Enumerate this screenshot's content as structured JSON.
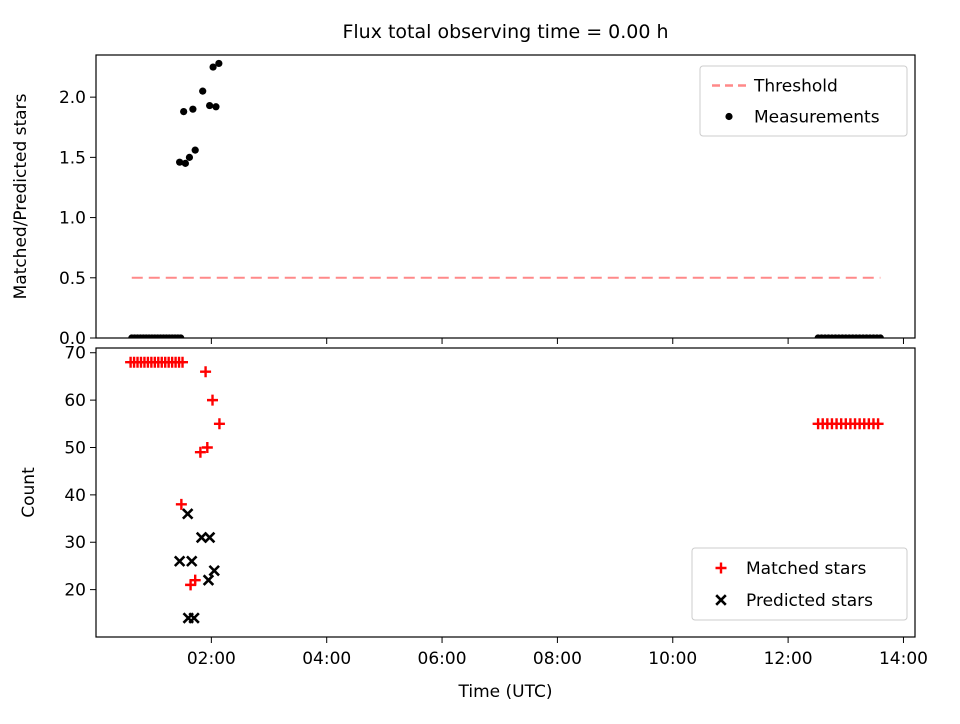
{
  "figure": {
    "title": "Flux total observing time = 0.00 h",
    "xlabel": "Time (UTC)",
    "background": "#ffffff"
  },
  "chart_data": [
    {
      "type": "scatter",
      "title": "Flux total observing time = 0.00 h",
      "ylabel": "Matched/Predicted stars",
      "xlim": [
        0,
        14.2
      ],
      "ylim": [
        0,
        2.35
      ],
      "yticks": [
        0,
        0.5,
        1,
        1.5,
        2
      ],
      "ytick_labels": [
        "0.0",
        "0.5",
        "1.0",
        "1.5",
        "2.0"
      ],
      "xticks": [
        2,
        4,
        6,
        8,
        10,
        12,
        14
      ],
      "grid": false,
      "threshold": {
        "label": "Threshold",
        "value": 0.5,
        "color": "#ff8989",
        "style": "dashed",
        "span": [
          0.62,
          13.6
        ]
      },
      "legend": {
        "position": "upper right",
        "entries": [
          "Threshold",
          "Measurements"
        ]
      },
      "series": [
        {
          "name": "Measurements",
          "marker": "dot",
          "color": "#000000",
          "points": [
            [
              0.62,
              0
            ],
            [
              0.67,
              0
            ],
            [
              0.72,
              0
            ],
            [
              0.77,
              0
            ],
            [
              0.82,
              0
            ],
            [
              0.87,
              0
            ],
            [
              0.92,
              0
            ],
            [
              0.97,
              0
            ],
            [
              1.02,
              0
            ],
            [
              1.07,
              0
            ],
            [
              1.12,
              0
            ],
            [
              1.17,
              0
            ],
            [
              1.22,
              0
            ],
            [
              1.27,
              0
            ],
            [
              1.32,
              0
            ],
            [
              1.37,
              0
            ],
            [
              1.42,
              0
            ],
            [
              1.47,
              0
            ],
            [
              1.45,
              1.46
            ],
            [
              1.55,
              1.45
            ],
            [
              1.62,
              1.5
            ],
            [
              1.72,
              1.56
            ],
            [
              1.52,
              1.88
            ],
            [
              1.68,
              1.9
            ],
            [
              1.85,
              2.05
            ],
            [
              1.97,
              1.93
            ],
            [
              2.03,
              2.25
            ],
            [
              2.13,
              2.28
            ],
            [
              2.08,
              1.92
            ],
            [
              12.52,
              0
            ],
            [
              12.58,
              0
            ],
            [
              12.64,
              0
            ],
            [
              12.7,
              0
            ],
            [
              12.76,
              0
            ],
            [
              12.82,
              0
            ],
            [
              12.88,
              0
            ],
            [
              12.94,
              0
            ],
            [
              13.0,
              0
            ],
            [
              13.06,
              0
            ],
            [
              13.12,
              0
            ],
            [
              13.18,
              0
            ],
            [
              13.24,
              0
            ],
            [
              13.3,
              0
            ],
            [
              13.36,
              0
            ],
            [
              13.42,
              0
            ],
            [
              13.48,
              0
            ],
            [
              13.54,
              0
            ],
            [
              13.6,
              0
            ]
          ]
        }
      ]
    },
    {
      "type": "scatter",
      "ylabel": "Count",
      "xlabel": "Time (UTC)",
      "xlim": [
        0,
        14.2
      ],
      "ylim": [
        10,
        71
      ],
      "yticks": [
        20,
        30,
        40,
        50,
        60,
        70
      ],
      "ytick_labels": [
        "20",
        "30",
        "40",
        "50",
        "60",
        "70"
      ],
      "xticks": [
        2,
        4,
        6,
        8,
        10,
        12,
        14
      ],
      "xtick_labels": [
        "02:00",
        "04:00",
        "06:00",
        "08:00",
        "10:00",
        "12:00",
        "14:00"
      ],
      "grid": false,
      "legend": {
        "position": "lower right",
        "entries": [
          "Matched stars",
          "Predicted stars"
        ]
      },
      "series": [
        {
          "name": "Matched stars",
          "marker": "plus",
          "color": "#ff0000",
          "points": [
            [
              0.6,
              68
            ],
            [
              0.66,
              68
            ],
            [
              0.72,
              68
            ],
            [
              0.78,
              68
            ],
            [
              0.84,
              68
            ],
            [
              0.9,
              68
            ],
            [
              0.96,
              68
            ],
            [
              1.02,
              68
            ],
            [
              1.08,
              68
            ],
            [
              1.14,
              68
            ],
            [
              1.2,
              68
            ],
            [
              1.26,
              68
            ],
            [
              1.32,
              68
            ],
            [
              1.38,
              68
            ],
            [
              1.44,
              68
            ],
            [
              1.5,
              68
            ],
            [
              1.9,
              66
            ],
            [
              2.02,
              60
            ],
            [
              2.14,
              55
            ],
            [
              1.81,
              49
            ],
            [
              1.93,
              50
            ],
            [
              1.48,
              38
            ],
            [
              1.64,
              21
            ],
            [
              1.72,
              22
            ],
            [
              12.52,
              55
            ],
            [
              12.6,
              55
            ],
            [
              12.68,
              55
            ],
            [
              12.76,
              55
            ],
            [
              12.84,
              55
            ],
            [
              12.92,
              55
            ],
            [
              13.0,
              55
            ],
            [
              13.08,
              55
            ],
            [
              13.16,
              55
            ],
            [
              13.24,
              55
            ],
            [
              13.32,
              55
            ],
            [
              13.4,
              55
            ],
            [
              13.48,
              55
            ],
            [
              13.56,
              55
            ]
          ]
        },
        {
          "name": "Predicted stars",
          "marker": "x",
          "color": "#000000",
          "points": [
            [
              1.59,
              36
            ],
            [
              1.83,
              31
            ],
            [
              1.97,
              31
            ],
            [
              1.45,
              26
            ],
            [
              1.66,
              26
            ],
            [
              2.05,
              24
            ],
            [
              1.95,
              22
            ],
            [
              1.6,
              14
            ],
            [
              1.7,
              14
            ]
          ]
        }
      ]
    }
  ]
}
